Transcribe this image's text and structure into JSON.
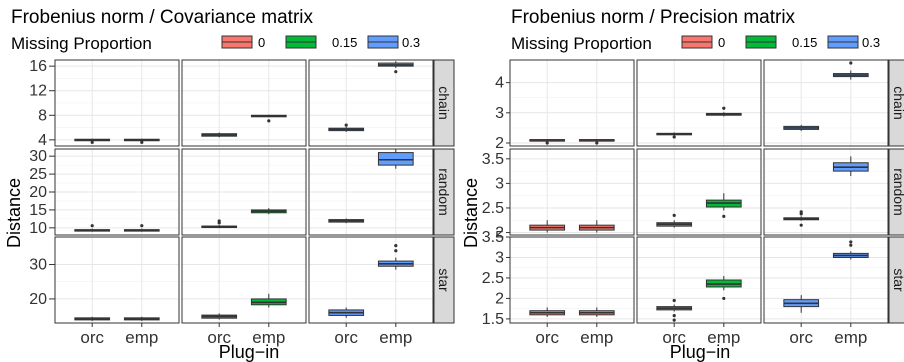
{
  "chart_data": [
    {
      "type": "boxplot",
      "title": "Frobenius norm / Covariance matrix",
      "xlabel": "Plug−in",
      "ylabel": "Distance",
      "legend": {
        "title": "Missing Proportion",
        "placement": "top",
        "entries": [
          "0",
          "0.15",
          "0.3"
        ]
      },
      "colors": {
        "0": "#F8766D",
        "0.15": "#00BA38",
        "0.3": "#619CFF"
      },
      "columns": [
        "0",
        "0.15",
        "0.3"
      ],
      "categories": [
        "orc",
        "emp"
      ],
      "rows": [
        {
          "label": "chain",
          "ylim": [
            3,
            17
          ],
          "ticks": [
            4,
            8,
            12,
            16
          ],
          "boxes": {
            "0": [
              {
                "x": "orc",
                "min": 3.8,
                "q1": 3.9,
                "median": 4.0,
                "q3": 4.1,
                "max": 4.2,
                "outliers": [
                  3.6
                ]
              },
              {
                "x": "emp",
                "min": 3.8,
                "q1": 3.9,
                "median": 4.0,
                "q3": 4.1,
                "max": 4.2,
                "outliers": [
                  3.6
                ]
              }
            ],
            "0.15": [
              {
                "x": "orc",
                "min": 4.4,
                "q1": 4.6,
                "median": 4.8,
                "q3": 5.0,
                "max": 5.2,
                "outliers": []
              },
              {
                "x": "emp",
                "min": 7.7,
                "q1": 7.8,
                "median": 7.9,
                "q3": 8.0,
                "max": 8.1,
                "outliers": [
                  7.1
                ]
              }
            ],
            "0.3": [
              {
                "x": "orc",
                "min": 5.3,
                "q1": 5.5,
                "median": 5.7,
                "q3": 5.9,
                "max": 6.1,
                "outliers": [
                  6.4
                ]
              },
              {
                "x": "emp",
                "min": 15.7,
                "q1": 16.0,
                "median": 16.2,
                "q3": 16.5,
                "max": 16.8,
                "outliers": [
                  15.1
                ]
              }
            ]
          }
        },
        {
          "label": "random",
          "ylim": [
            8,
            32
          ],
          "ticks": [
            10,
            15,
            20,
            25,
            30
          ],
          "boxes": {
            "0": [
              {
                "x": "orc",
                "min": 8.9,
                "q1": 9.1,
                "median": 9.3,
                "q3": 9.5,
                "max": 9.8,
                "outliers": [
                  10.6
                ]
              },
              {
                "x": "emp",
                "min": 8.9,
                "q1": 9.1,
                "median": 9.3,
                "q3": 9.5,
                "max": 9.8,
                "outliers": [
                  10.6
                ]
              }
            ],
            "0.15": [
              {
                "x": "orc",
                "min": 9.9,
                "q1": 10.1,
                "median": 10.3,
                "q3": 10.5,
                "max": 10.8,
                "outliers": [
                  11.4,
                  11.9
                ]
              },
              {
                "x": "emp",
                "min": 13.8,
                "q1": 14.2,
                "median": 14.6,
                "q3": 15.0,
                "max": 15.5,
                "outliers": []
              }
            ],
            "0.3": [
              {
                "x": "orc",
                "min": 11.3,
                "q1": 11.6,
                "median": 12.0,
                "q3": 12.3,
                "max": 12.6,
                "outliers": []
              },
              {
                "x": "emp",
                "min": 26.5,
                "q1": 27.5,
                "median": 29.0,
                "q3": 31.0,
                "max": 32.0,
                "outliers": []
              }
            ]
          }
        },
        {
          "label": "star",
          "ylim": [
            13,
            38
          ],
          "ticks": [
            20,
            30
          ],
          "boxes": {
            "0": [
              {
                "x": "orc",
                "min": 13.6,
                "q1": 13.9,
                "median": 14.2,
                "q3": 14.5,
                "max": 14.8,
                "outliers": []
              },
              {
                "x": "emp",
                "min": 13.6,
                "q1": 13.9,
                "median": 14.2,
                "q3": 14.5,
                "max": 14.8,
                "outliers": []
              }
            ],
            "0.15": [
              {
                "x": "orc",
                "min": 14.0,
                "q1": 14.4,
                "median": 14.9,
                "q3": 15.3,
                "max": 15.8,
                "outliers": []
              },
              {
                "x": "emp",
                "min": 17.5,
                "q1": 18.3,
                "median": 19.0,
                "q3": 20.0,
                "max": 21.5,
                "outliers": []
              }
            ],
            "0.3": [
              {
                "x": "orc",
                "min": 14.5,
                "q1": 15.2,
                "median": 16.0,
                "q3": 16.8,
                "max": 17.5,
                "outliers": []
              },
              {
                "x": "emp",
                "min": 28.5,
                "q1": 29.5,
                "median": 30.2,
                "q3": 31.0,
                "max": 32.0,
                "outliers": [
                  34.0,
                  35.5
                ]
              }
            ]
          }
        }
      ]
    },
    {
      "type": "boxplot",
      "title": "Frobenius norm / Precision matrix",
      "xlabel": "Plug−in",
      "ylabel": "Distance",
      "legend": {
        "title": "Missing Proportion",
        "placement": "top",
        "entries": [
          "0",
          "0.15",
          "0.3"
        ]
      },
      "colors": {
        "0": "#F8766D",
        "0.15": "#00BA38",
        "0.3": "#619CFF"
      },
      "columns": [
        "0",
        "0.15",
        "0.3"
      ],
      "categories": [
        "orc",
        "emp"
      ],
      "rows": [
        {
          "label": "chain",
          "ylim": [
            1.9,
            4.75
          ],
          "ticks": [
            2,
            3,
            4
          ],
          "boxes": {
            "0": [
              {
                "x": "orc",
                "min": 2.07,
                "q1": 2.09,
                "median": 2.1,
                "q3": 2.11,
                "max": 2.13,
                "outliers": [
                  2.0
                ]
              },
              {
                "x": "emp",
                "min": 2.07,
                "q1": 2.09,
                "median": 2.1,
                "q3": 2.11,
                "max": 2.13,
                "outliers": [
                  2.0
                ]
              }
            ],
            "0.15": [
              {
                "x": "orc",
                "min": 2.25,
                "q1": 2.28,
                "median": 2.3,
                "q3": 2.32,
                "max": 2.35,
                "outliers": [
                  2.2
                ]
              },
              {
                "x": "emp",
                "min": 2.88,
                "q1": 2.92,
                "median": 2.95,
                "q3": 2.98,
                "max": 3.02,
                "outliers": [
                  3.15
                ]
              }
            ],
            "0.3": [
              {
                "x": "orc",
                "min": 2.4,
                "q1": 2.45,
                "median": 2.5,
                "q3": 2.55,
                "max": 2.6,
                "outliers": []
              },
              {
                "x": "emp",
                "min": 4.1,
                "q1": 4.2,
                "median": 4.25,
                "q3": 4.3,
                "max": 4.4,
                "outliers": [
                  4.65
                ]
              }
            ]
          }
        },
        {
          "label": "random",
          "ylim": [
            1.95,
            3.7
          ],
          "ticks": [
            2.0,
            2.5,
            3.0,
            3.5
          ],
          "boxes": {
            "0": [
              {
                "x": "orc",
                "min": 2.0,
                "q1": 2.05,
                "median": 2.1,
                "q3": 2.15,
                "max": 2.25,
                "outliers": []
              },
              {
                "x": "emp",
                "min": 2.0,
                "q1": 2.05,
                "median": 2.1,
                "q3": 2.15,
                "max": 2.25,
                "outliers": []
              }
            ],
            "0.15": [
              {
                "x": "orc",
                "min": 2.1,
                "q1": 2.13,
                "median": 2.17,
                "q3": 2.2,
                "max": 2.25,
                "outliers": [
                  2.35
                ]
              },
              {
                "x": "emp",
                "min": 2.45,
                "q1": 2.52,
                "median": 2.6,
                "q3": 2.66,
                "max": 2.8,
                "outliers": [
                  2.33
                ]
              }
            ],
            "0.3": [
              {
                "x": "orc",
                "min": 2.24,
                "q1": 2.26,
                "median": 2.28,
                "q3": 2.3,
                "max": 2.33,
                "outliers": [
                  2.38,
                  2.42,
                  2.15
                ]
              },
              {
                "x": "emp",
                "min": 3.15,
                "q1": 3.25,
                "median": 3.33,
                "q3": 3.42,
                "max": 3.55,
                "outliers": []
              }
            ]
          }
        },
        {
          "label": "star",
          "ylim": [
            1.4,
            3.5
          ],
          "ticks": [
            1.5,
            2.0,
            2.5,
            3.0,
            3.5
          ],
          "boxes": {
            "0": [
              {
                "x": "orc",
                "min": 1.55,
                "q1": 1.6,
                "median": 1.65,
                "q3": 1.7,
                "max": 1.78,
                "outliers": []
              },
              {
                "x": "emp",
                "min": 1.55,
                "q1": 1.6,
                "median": 1.65,
                "q3": 1.7,
                "max": 1.78,
                "outliers": []
              }
            ],
            "0.15": [
              {
                "x": "orc",
                "min": 1.68,
                "q1": 1.72,
                "median": 1.76,
                "q3": 1.8,
                "max": 1.85,
                "outliers": [
                  1.95,
                  1.58,
                  1.47
                ]
              },
              {
                "x": "emp",
                "min": 2.2,
                "q1": 2.28,
                "median": 2.35,
                "q3": 2.45,
                "max": 2.55,
                "outliers": [
                  2.0
                ]
              }
            ],
            "0.3": [
              {
                "x": "orc",
                "min": 1.65,
                "q1": 1.8,
                "median": 1.88,
                "q3": 1.97,
                "max": 2.08,
                "outliers": []
              },
              {
                "x": "emp",
                "min": 2.95,
                "q1": 3.0,
                "median": 3.05,
                "q3": 3.1,
                "max": 3.15,
                "outliers": [
                  3.3,
                  3.38
                ]
              }
            ]
          }
        }
      ]
    }
  ]
}
